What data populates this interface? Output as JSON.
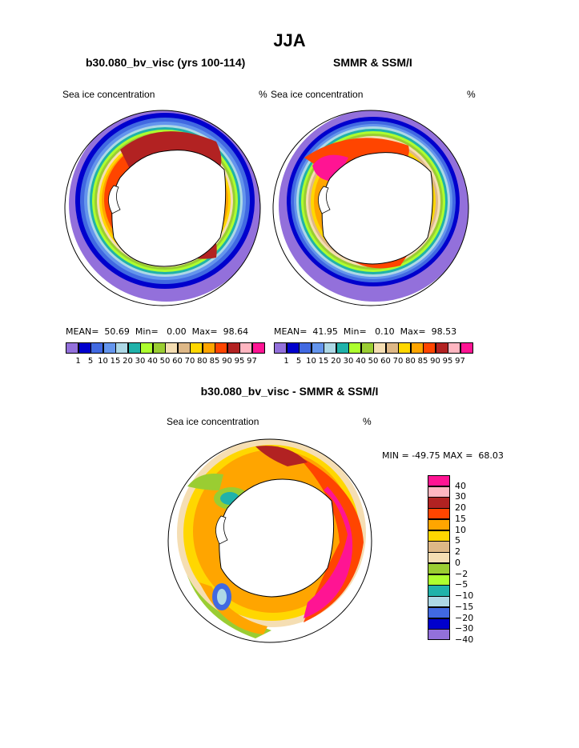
{
  "page_title": "JJA",
  "left_panel": {
    "title": "b30.080_bv_visc (yrs 100-114)",
    "subtitle_left": "Sea ice concentration",
    "subtitle_right": "%",
    "mean_label": "MEAN=",
    "mean_value": "50.69",
    "min_label": "Min=",
    "min_value": "0.00",
    "max_label": "Max=",
    "max_value": "98.64"
  },
  "right_panel": {
    "title": "SMMR & SSM/I",
    "subtitle_left": "Sea ice concentration",
    "subtitle_right": "%",
    "mean_label": "MEAN=",
    "mean_value": "41.95",
    "min_label": "Min=",
    "min_value": "0.10",
    "max_label": "Max=",
    "max_value": "98.53"
  },
  "diff_panel": {
    "title": "b30.080_bv_visc - SMMR & SSM/I",
    "subtitle_left": "Sea ice concentration",
    "subtitle_right": "%",
    "min_label": "MIN =",
    "min_value": "-49.75",
    "max_label": "MAX =",
    "max_value": "68.03"
  },
  "conc_colorbar": {
    "labels": [
      "1",
      "5",
      "10",
      "15",
      "20",
      "30",
      "40",
      "50",
      "60",
      "70",
      "80",
      "85",
      "90",
      "95",
      "97"
    ],
    "colors": [
      "#9370db",
      "#0000cd",
      "#4169e1",
      "#6495ed",
      "#add8e6",
      "#20b2aa",
      "#adff2f",
      "#9acd32",
      "#f5deb3",
      "#deb887",
      "#ffd700",
      "#ffa500",
      "#ff4500",
      "#b22222",
      "#ffb6c1",
      "#ff1493"
    ]
  },
  "diff_colorbar": {
    "labels": [
      "40",
      "30",
      "20",
      "15",
      "10",
      "5",
      "2",
      "0",
      "−2",
      "−5",
      "−10",
      "−15",
      "−20",
      "−30",
      "−40"
    ],
    "colors": [
      "#ff1493",
      "#ffb6c1",
      "#b22222",
      "#ff4500",
      "#ffa500",
      "#ffd700",
      "#deb887",
      "#f5deb3",
      "#9acd32",
      "#adff2f",
      "#20b2aa",
      "#add8e6",
      "#4169e1",
      "#0000cd",
      "#9370db"
    ]
  }
}
